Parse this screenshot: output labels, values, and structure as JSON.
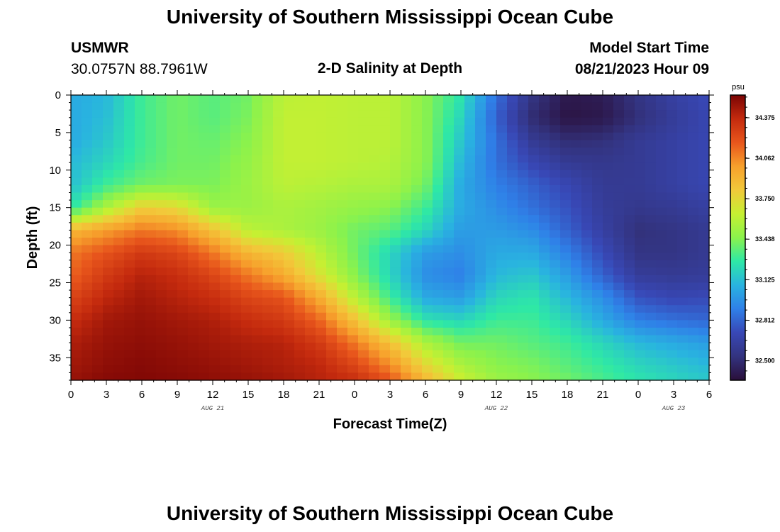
{
  "page": {
    "title_top": "University of Southern Mississippi Ocean Cube",
    "title_bottom": "University of Southern Mississippi Ocean Cube",
    "station_id": "USMWR",
    "station_coords": "30.0757N  88.7961W",
    "plot_title": "2-D Salinity at Depth",
    "model_start_label": "Model Start Time",
    "model_start_value": "08/21/2023 Hour 09"
  },
  "colors": {
    "colormap": [
      "#2a0f3a",
      "#33337f",
      "#3848b6",
      "#2f80e8",
      "#29b3e0",
      "#2ee8a6",
      "#8bf24c",
      "#c6f032",
      "#f2c93a",
      "#f7a02c",
      "#e8561c",
      "#c42a0e",
      "#7a0404"
    ]
  },
  "chart_data": {
    "type": "heatmap",
    "title": "2-D Salinity at Depth",
    "xlabel": "Forecast Time(Z)",
    "ylabel": "Depth (ft)",
    "x_tick_labels": [
      "0",
      "3",
      "6",
      "9",
      "12",
      "15",
      "18",
      "21",
      "0",
      "3",
      "6",
      "9",
      "12",
      "15",
      "18",
      "21",
      "0",
      "3",
      "6"
    ],
    "x_hours": [
      0,
      3,
      6,
      9,
      12,
      15,
      18,
      21,
      24,
      27,
      30,
      33,
      36,
      39,
      42,
      45,
      48,
      51,
      54
    ],
    "date_labels": [
      {
        "label": "AUG 21",
        "hour": 12
      },
      {
        "label": "AUG 22",
        "hour": 36
      },
      {
        "label": "AUG 23",
        "hour": 51
      }
    ],
    "y_tick_labels": [
      "0",
      "5",
      "10",
      "15",
      "20",
      "25",
      "30",
      "35"
    ],
    "y_values": [
      0,
      5,
      10,
      15,
      20,
      25,
      30,
      35
    ],
    "xlim": [
      0,
      54
    ],
    "ylim": [
      0,
      38
    ],
    "colorbar": {
      "unit": "psu",
      "range": [
        32.35,
        34.55
      ],
      "tick_labels": [
        "34.375",
        "34.062",
        "33.750",
        "33.438",
        "33.125",
        "32.812",
        "32.500"
      ],
      "tick_values": [
        34.375,
        34.062,
        33.75,
        33.438,
        33.125,
        32.812,
        32.5
      ]
    },
    "depth_grid": [
      0,
      3,
      6,
      9,
      12,
      15,
      18,
      21,
      24,
      27,
      30,
      33,
      36,
      38
    ],
    "time_grid": [
      0,
      3,
      6,
      9,
      12,
      15,
      18,
      21,
      24,
      27,
      30,
      33,
      36,
      39,
      42,
      45,
      48,
      51,
      54
    ],
    "salinity_grid": [
      [
        33.05,
        33.1,
        33.3,
        33.4,
        33.35,
        33.4,
        33.6,
        33.62,
        33.6,
        33.6,
        33.45,
        33.25,
        32.85,
        32.55,
        32.4,
        32.42,
        32.55,
        32.65,
        32.72
      ],
      [
        33.05,
        33.12,
        33.3,
        33.4,
        33.35,
        33.42,
        33.62,
        33.62,
        33.6,
        33.6,
        33.45,
        33.2,
        32.8,
        32.5,
        32.38,
        32.4,
        32.52,
        32.62,
        32.7
      ],
      [
        33.05,
        33.15,
        33.3,
        33.4,
        33.38,
        33.45,
        33.62,
        33.62,
        33.6,
        33.6,
        33.45,
        33.15,
        32.85,
        32.6,
        32.5,
        32.52,
        32.6,
        32.65,
        32.7
      ],
      [
        33.1,
        33.2,
        33.32,
        33.4,
        33.4,
        33.48,
        33.62,
        33.62,
        33.6,
        33.58,
        33.45,
        33.1,
        32.85,
        32.7,
        32.6,
        32.58,
        32.6,
        32.65,
        32.7
      ],
      [
        33.12,
        33.3,
        33.4,
        33.42,
        33.42,
        33.5,
        33.6,
        33.58,
        33.55,
        33.55,
        33.4,
        33.05,
        32.9,
        32.8,
        32.7,
        32.6,
        32.6,
        32.65,
        32.7
      ],
      [
        33.25,
        33.55,
        33.8,
        33.75,
        33.5,
        33.5,
        33.55,
        33.52,
        33.48,
        33.45,
        33.3,
        33.05,
        32.95,
        32.85,
        32.75,
        32.62,
        32.58,
        32.6,
        32.65
      ],
      [
        33.9,
        34.0,
        34.1,
        34.05,
        33.85,
        33.6,
        33.55,
        33.5,
        33.4,
        33.35,
        33.2,
        33.0,
        33.0,
        32.95,
        32.8,
        32.65,
        32.52,
        32.55,
        32.6
      ],
      [
        34.1,
        34.2,
        34.3,
        34.25,
        34.1,
        33.9,
        33.8,
        33.6,
        33.4,
        33.2,
        33.0,
        32.95,
        33.05,
        33.05,
        32.9,
        32.72,
        32.55,
        32.55,
        32.6
      ],
      [
        34.15,
        34.3,
        34.4,
        34.35,
        34.25,
        34.1,
        33.95,
        33.7,
        33.45,
        33.2,
        32.95,
        32.9,
        33.1,
        33.15,
        33.0,
        32.8,
        32.62,
        32.6,
        32.62
      ],
      [
        34.25,
        34.38,
        34.45,
        34.4,
        34.35,
        34.25,
        34.2,
        33.95,
        33.6,
        33.3,
        33.05,
        33.0,
        33.2,
        33.25,
        33.1,
        32.95,
        32.75,
        32.7,
        32.72
      ],
      [
        34.35,
        34.45,
        34.48,
        34.45,
        34.42,
        34.35,
        34.3,
        34.15,
        33.85,
        33.5,
        33.25,
        33.2,
        33.3,
        33.3,
        33.2,
        33.05,
        32.9,
        32.85,
        32.82
      ],
      [
        34.42,
        34.48,
        34.5,
        34.48,
        34.45,
        34.42,
        34.4,
        34.3,
        34.1,
        33.85,
        33.55,
        33.4,
        33.4,
        33.35,
        33.3,
        33.2,
        33.1,
        33.05,
        33.0
      ],
      [
        34.45,
        34.5,
        34.52,
        34.5,
        34.48,
        34.45,
        34.42,
        34.38,
        34.25,
        34.05,
        33.75,
        33.55,
        33.45,
        33.42,
        33.35,
        33.28,
        33.2,
        33.15,
        33.1
      ],
      [
        34.48,
        34.52,
        34.53,
        34.52,
        34.5,
        34.48,
        34.45,
        34.4,
        34.35,
        34.2,
        33.9,
        33.65,
        33.5,
        33.45,
        33.4,
        33.32,
        33.25,
        33.2,
        33.15
      ]
    ]
  }
}
